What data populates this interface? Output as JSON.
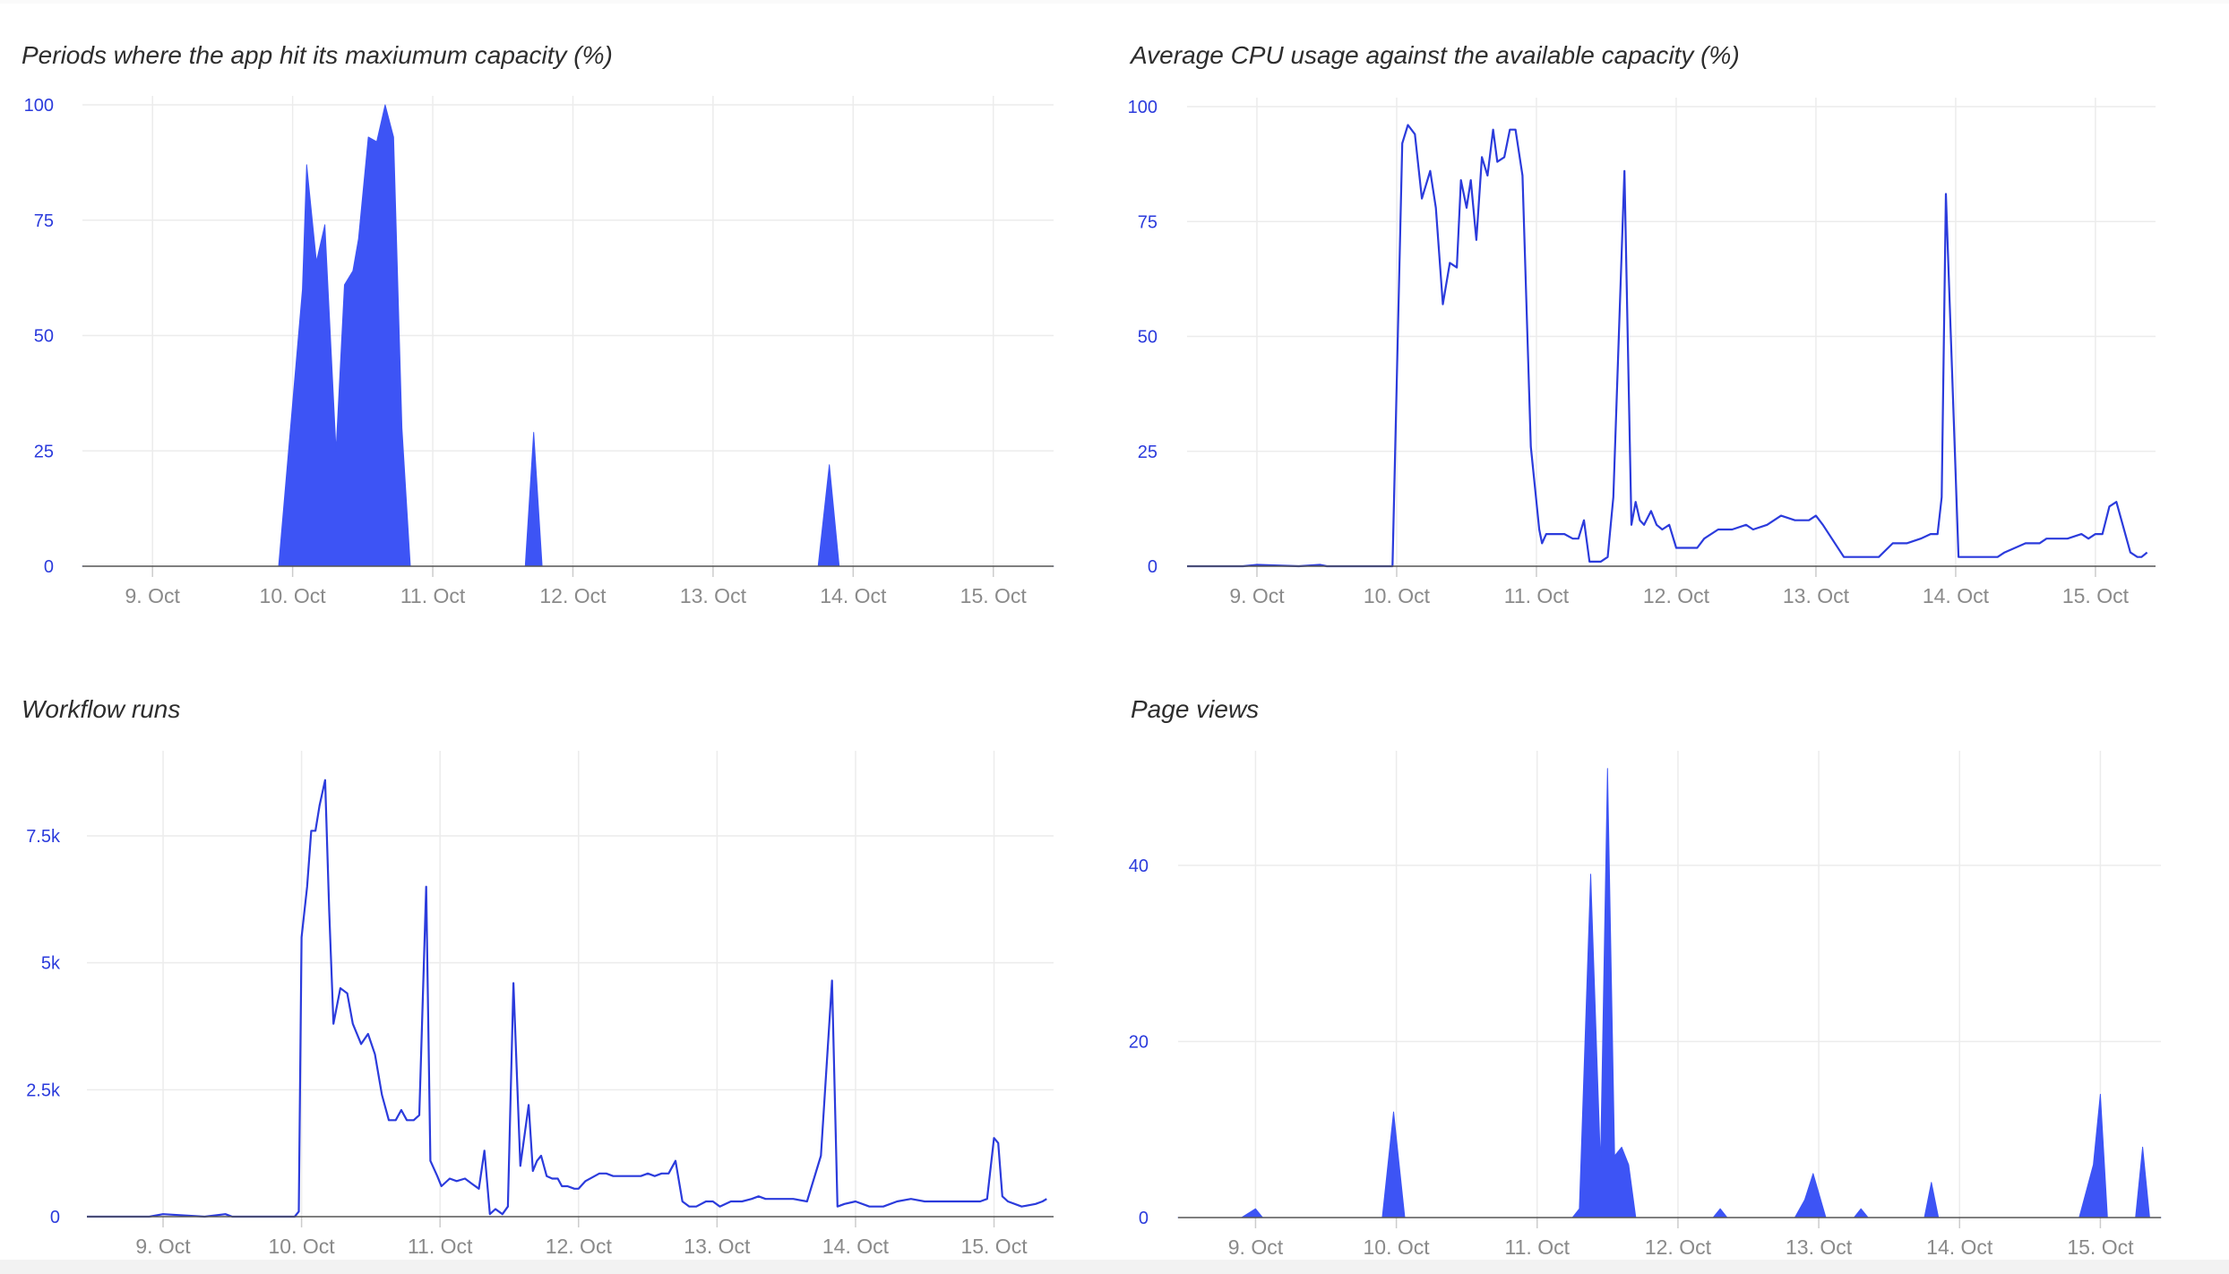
{
  "colors": {
    "series": "#2b3bdc",
    "fill": "#3d54f5",
    "grid": "#ececec",
    "axis": "#555555",
    "xtick": "#8a8a8a"
  },
  "chart_data": [
    {
      "id": "capacity",
      "type": "area",
      "title": "Periods where the app hit its maxiumum capacity (%)",
      "xlabel": "",
      "ylabel": "",
      "x_tick_labels": [
        "9. Oct",
        "10. Oct",
        "11. Oct",
        "12. Oct",
        "13. Oct",
        "14. Oct",
        "15. Oct"
      ],
      "y_tick_labels": [
        "100",
        "75",
        "50",
        "25",
        "0"
      ],
      "y_tick_values": [
        100,
        75,
        50,
        25,
        0
      ],
      "xlim": [
        8.5,
        15.43
      ],
      "ylim": [
        0,
        100
      ],
      "x": [
        8.5,
        9.9,
        10.07,
        10.1,
        10.17,
        10.23,
        10.31,
        10.37,
        10.43,
        10.47,
        10.54,
        10.6,
        10.66,
        10.72,
        10.78,
        10.84,
        10.9,
        10.97,
        11.05,
        11.6,
        11.66,
        11.72,
        11.78,
        13.75,
        13.83,
        13.9,
        15.43
      ],
      "y": [
        0,
        0,
        60,
        87,
        66,
        74,
        25,
        61,
        64,
        71,
        93,
        92,
        100,
        93,
        30,
        0,
        0,
        0,
        0,
        0,
        0,
        29,
        0,
        0,
        22,
        0,
        0
      ]
    },
    {
      "id": "cpu",
      "type": "line",
      "title": "Average CPU usage against the available capacity (%)",
      "xlabel": "",
      "ylabel": "",
      "x_tick_labels": [
        "9. Oct",
        "10. Oct",
        "11. Oct",
        "12. Oct",
        "13. Oct",
        "14. Oct",
        "15. Oct"
      ],
      "y_tick_labels": [
        "100",
        "75",
        "50",
        "25",
        "0"
      ],
      "y_tick_values": [
        100,
        75,
        50,
        25,
        0
      ],
      "xlim": [
        8.5,
        15.43
      ],
      "ylim": [
        0,
        100
      ],
      "x": [
        8.5,
        8.9,
        9.0,
        9.3,
        9.45,
        9.5,
        9.97,
        10.04,
        10.08,
        10.13,
        10.18,
        10.24,
        10.28,
        10.33,
        10.38,
        10.43,
        10.46,
        10.5,
        10.53,
        10.57,
        10.61,
        10.65,
        10.69,
        10.72,
        10.77,
        10.81,
        10.85,
        10.9,
        10.96,
        11.02,
        11.04,
        11.07,
        11.1,
        11.14,
        11.2,
        11.26,
        11.3,
        11.34,
        11.38,
        11.42,
        11.46,
        11.51,
        11.55,
        11.63,
        11.68,
        11.71,
        11.74,
        11.77,
        11.82,
        11.86,
        11.9,
        11.95,
        12.0,
        12.08,
        12.15,
        12.2,
        12.3,
        12.4,
        12.5,
        12.55,
        12.65,
        12.7,
        12.75,
        12.85,
        12.9,
        12.95,
        13.0,
        13.05,
        13.2,
        13.28,
        13.35,
        13.45,
        13.55,
        13.65,
        13.75,
        13.82,
        13.87,
        13.9,
        13.93,
        14.02,
        14.1,
        14.2,
        14.25,
        14.3,
        14.35,
        14.5,
        14.6,
        14.65,
        14.7,
        14.8,
        14.9,
        14.95,
        15.0,
        15.05,
        15.1,
        15.15,
        15.25,
        15.3,
        15.33,
        15.37
      ],
      "y": [
        0,
        0,
        0.3,
        0,
        0.3,
        0,
        0,
        92,
        96,
        94,
        80,
        86,
        78,
        57,
        66,
        65,
        84,
        78,
        84,
        71,
        89,
        85,
        95,
        88,
        89,
        95,
        95,
        85,
        26,
        8,
        5,
        7,
        7,
        7,
        7,
        6,
        6,
        10,
        1,
        1,
        1,
        2,
        15,
        86,
        9,
        14,
        10,
        9,
        12,
        9,
        8,
        9,
        4,
        4,
        4,
        6,
        8,
        8,
        9,
        8,
        9,
        10,
        11,
        10,
        10,
        10,
        11,
        9,
        2,
        2,
        2,
        2,
        5,
        5,
        6,
        7,
        7,
        15,
        81,
        2,
        2,
        2,
        2,
        2,
        3,
        5,
        5,
        6,
        6,
        6,
        7,
        6,
        7,
        7,
        13,
        14,
        3,
        2,
        2,
        3
      ]
    },
    {
      "id": "workflow",
      "type": "line",
      "title": "Workflow runs",
      "xlabel": "",
      "ylabel": "",
      "x_tick_labels": [
        "9. Oct",
        "10. Oct",
        "11. Oct",
        "12. Oct",
        "13. Oct",
        "14. Oct",
        "15. Oct"
      ],
      "y_tick_labels": [
        "7.5k",
        "5k",
        "2.5k",
        "0"
      ],
      "y_tick_values": [
        7500,
        5000,
        2500,
        0
      ],
      "xlim": [
        8.45,
        15.43
      ],
      "ylim": [
        0,
        9000
      ],
      "x": [
        8.45,
        8.9,
        9.0,
        9.3,
        9.45,
        9.5,
        9.95,
        9.98,
        10.0,
        10.04,
        10.07,
        10.1,
        10.13,
        10.17,
        10.2,
        10.23,
        10.28,
        10.33,
        10.37,
        10.43,
        10.48,
        10.53,
        10.58,
        10.63,
        10.68,
        10.72,
        10.76,
        10.81,
        10.85,
        10.9,
        10.93,
        10.98,
        11.01,
        11.07,
        11.12,
        11.18,
        11.23,
        11.28,
        11.32,
        11.36,
        11.4,
        11.45,
        11.49,
        11.53,
        11.58,
        11.64,
        11.67,
        11.7,
        11.73,
        11.77,
        11.81,
        11.85,
        11.88,
        11.92,
        11.97,
        12.0,
        12.05,
        12.15,
        12.2,
        12.25,
        12.3,
        12.35,
        12.4,
        12.45,
        12.5,
        12.55,
        12.6,
        12.65,
        12.7,
        12.75,
        12.8,
        12.85,
        12.92,
        12.97,
        13.02,
        13.1,
        13.18,
        13.25,
        13.3,
        13.35,
        13.45,
        13.55,
        13.65,
        13.75,
        13.83,
        13.87,
        13.92,
        14.0,
        14.1,
        14.2,
        14.3,
        14.4,
        14.5,
        14.6,
        14.7,
        14.8,
        14.9,
        14.95,
        15.0,
        15.03,
        15.06,
        15.1,
        15.2,
        15.3,
        15.35,
        15.38
      ],
      "y": [
        0,
        0,
        50,
        0,
        50,
        0,
        0,
        100,
        5500,
        6500,
        7600,
        7600,
        8100,
        8600,
        6000,
        3800,
        4500,
        4400,
        3800,
        3400,
        3600,
        3200,
        2400,
        1900,
        1900,
        2100,
        1900,
        1900,
        2000,
        6500,
        1100,
        800,
        600,
        750,
        700,
        750,
        650,
        550,
        1300,
        50,
        150,
        50,
        200,
        4600,
        1000,
        2200,
        900,
        1100,
        1200,
        800,
        750,
        750,
        600,
        600,
        550,
        550,
        700,
        850,
        850,
        800,
        800,
        800,
        800,
        800,
        850,
        800,
        850,
        850,
        1100,
        300,
        200,
        200,
        300,
        300,
        200,
        300,
        300,
        350,
        400,
        350,
        350,
        350,
        300,
        1200,
        4650,
        200,
        250,
        300,
        200,
        200,
        300,
        350,
        300,
        300,
        300,
        300,
        300,
        350,
        1550,
        1450,
        400,
        300,
        200,
        250,
        300,
        350
      ]
    },
    {
      "id": "pageviews",
      "type": "area",
      "title": "Page views",
      "xlabel": "",
      "ylabel": "",
      "x_tick_labels": [
        "9. Oct",
        "10. Oct",
        "11. Oct",
        "12. Oct",
        "13. Oct",
        "14. Oct",
        "15. Oct"
      ],
      "y_tick_labels": [
        "40",
        "20",
        "0"
      ],
      "y_tick_values": [
        40,
        20,
        0
      ],
      "xlim": [
        8.45,
        15.43
      ],
      "ylim": [
        0,
        52
      ],
      "x": [
        8.45,
        8.9,
        9.0,
        9.05,
        9.9,
        9.98,
        10.06,
        11.25,
        11.3,
        11.38,
        11.45,
        11.5,
        11.55,
        11.6,
        11.65,
        11.7,
        11.75,
        11.8,
        12.25,
        12.3,
        12.35,
        12.83,
        12.9,
        12.96,
        13.05,
        13.25,
        13.3,
        13.35,
        13.75,
        13.8,
        13.85,
        14.85,
        14.95,
        15.0,
        15.05,
        15.25,
        15.3,
        15.35,
        15.43
      ],
      "y": [
        0,
        0,
        1,
        0,
        0,
        12,
        0,
        0,
        1,
        39,
        6,
        51,
        7,
        8,
        6,
        0,
        0,
        0,
        0,
        1,
        0,
        0,
        2,
        5,
        0,
        0,
        1,
        0,
        0,
        4,
        0,
        0,
        6,
        14,
        0,
        0,
        8,
        0,
        0
      ]
    }
  ]
}
